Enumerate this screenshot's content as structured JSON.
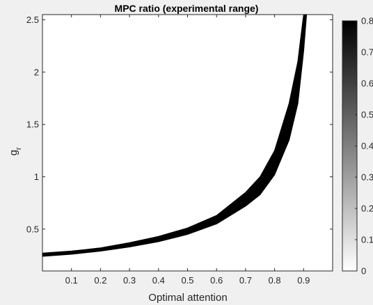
{
  "chart_data": {
    "type": "heatmap",
    "title": "MPC ratio (experimental range)",
    "xlabel": "Optimal attention",
    "ylabel": "g",
    "ylabel_subscript": "r",
    "xlim": [
      0,
      1
    ],
    "ylim": [
      0.1,
      2.55
    ],
    "xticks": [
      "0.1",
      "0.2",
      "0.3",
      "0.4",
      "0.5",
      "0.6",
      "0.7",
      "0.8",
      "0.9"
    ],
    "yticks": [
      "0.5",
      "1",
      "1.5",
      "2",
      "2.5"
    ],
    "xtick_values": [
      0.1,
      0.2,
      0.3,
      0.4,
      0.5,
      0.6,
      0.7,
      0.8,
      0.9
    ],
    "ytick_values": [
      0.5,
      1,
      1.5,
      2,
      2.5
    ],
    "colorbar": {
      "range": [
        0,
        0.8
      ],
      "ticks": [
        "0",
        "0.1",
        "0.2",
        "0.3",
        "0.4",
        "0.5",
        "0.6",
        "0.7",
        "0.8"
      ],
      "tick_values": [
        0,
        0.1,
        0.2,
        0.3,
        0.4,
        0.5,
        0.6,
        0.7,
        0.8
      ],
      "colormap": "gray-inverted (white = 0, black = 0.8)"
    },
    "band": {
      "description": "region where MPC ratio is within the experimental range",
      "fill_value": 0.8,
      "x": [
        0.0,
        0.1,
        0.2,
        0.3,
        0.4,
        0.5,
        0.6,
        0.7,
        0.75,
        0.8,
        0.85,
        0.88,
        0.9,
        0.91
      ],
      "y_lower": [
        0.24,
        0.26,
        0.29,
        0.33,
        0.38,
        0.45,
        0.55,
        0.72,
        0.83,
        1.02,
        1.35,
        1.7,
        2.2,
        2.55
      ],
      "y_upper": [
        0.27,
        0.29,
        0.32,
        0.37,
        0.43,
        0.51,
        0.63,
        0.85,
        1.0,
        1.25,
        1.7,
        2.1,
        2.55,
        2.55
      ]
    },
    "grid": false,
    "legend": "none"
  }
}
